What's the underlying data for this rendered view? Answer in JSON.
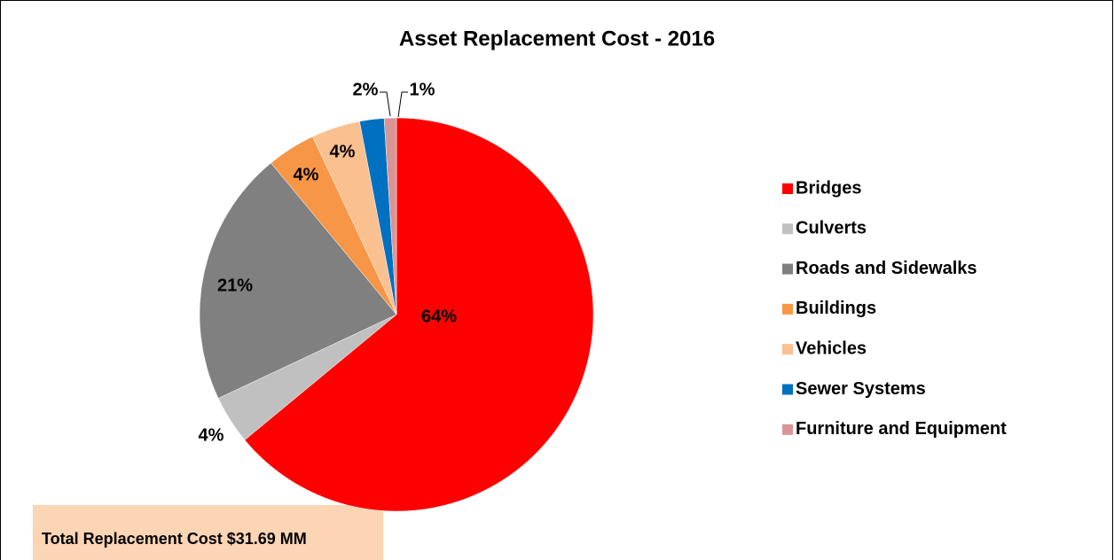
{
  "chart_data": {
    "type": "pie",
    "title": "Asset Replacement Cost - 2016",
    "categories": [
      "Bridges",
      "Culverts",
      "Roads and Sidewalks",
      "Buildings",
      "Vehicles",
      "Sewer Systems",
      "Furniture and Equipment"
    ],
    "values": [
      64,
      4,
      21,
      4,
      4,
      2,
      1
    ],
    "value_labels": [
      "64%",
      "4%",
      "21%",
      "4%",
      "4%",
      "2%",
      "1%"
    ],
    "colors": [
      "#ff0000",
      "#c0c0c0",
      "#808080",
      "#f79646",
      "#fac090",
      "#0070c0",
      "#d99594"
    ],
    "legend": "right",
    "note": "Total Replacement Cost $31.69 MM"
  }
}
